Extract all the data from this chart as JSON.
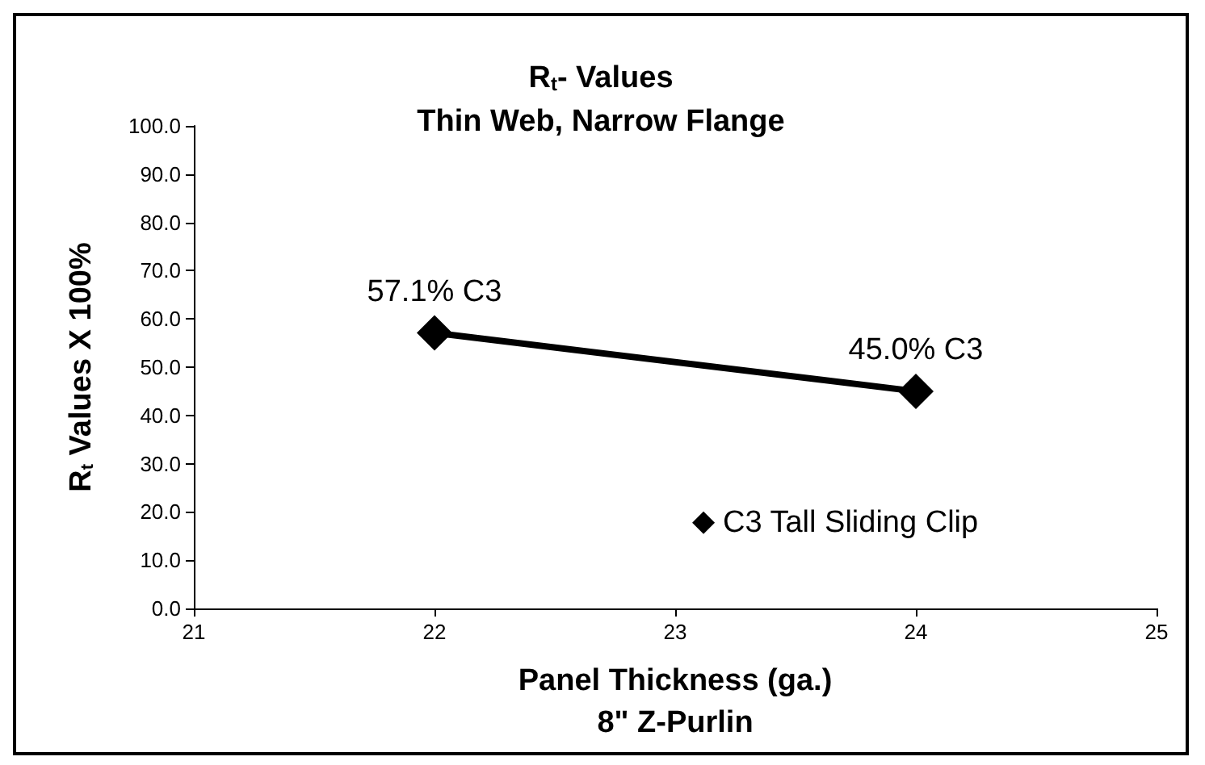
{
  "chart_data": {
    "type": "line",
    "title": "R$_{t}$- Values",
    "subtitle": "Thin Web, Narrow Flange",
    "xlabel": "Panel Thickness (ga.)\n8\" Z-Purlin",
    "ylabel": "R$_{t}$ Values X 100%",
    "x": [
      22,
      24
    ],
    "series": [
      {
        "name": "C3 Tall Sliding Clip",
        "color": "#000000",
        "values": [
          57.1,
          45.0
        ],
        "value_labels": [
          "57.1% C3",
          "45.0% C3"
        ]
      }
    ],
    "xlim": [
      21,
      25
    ],
    "xticks": [
      21,
      22,
      23,
      24,
      25
    ],
    "ylim": [
      0,
      100
    ],
    "yticks": [
      {
        "value": 0,
        "label": "0.0"
      },
      {
        "value": 10,
        "label": "10.0"
      },
      {
        "value": 20,
        "label": "20.0"
      },
      {
        "value": 30,
        "label": "30.0"
      },
      {
        "value": 40,
        "label": "40.0"
      },
      {
        "value": 50,
        "label": "50.0"
      },
      {
        "value": 60,
        "label": "60.0"
      },
      {
        "value": 70,
        "label": "70.0"
      },
      {
        "value": 80,
        "label": "80.0"
      },
      {
        "value": 90,
        "label": "90.0"
      },
      {
        "value": 100,
        "label": "100.0"
      }
    ],
    "grid": false,
    "legend": "bottom right",
    "marker": "diamond",
    "line_style": "solid"
  }
}
